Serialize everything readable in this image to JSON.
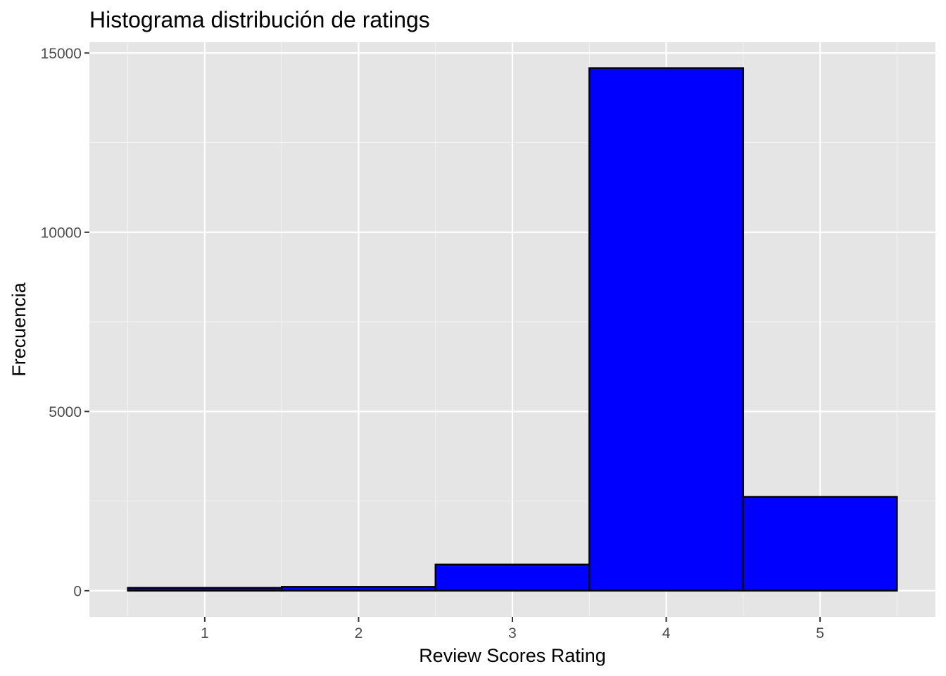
{
  "chart_data": {
    "type": "bar",
    "title": "Histograma distribución de ratings",
    "xlabel": "Review Scores Rating",
    "ylabel": "Frecuencia",
    "x_ticks": [
      "1",
      "2",
      "3",
      "4",
      "5"
    ],
    "y_ticks": [
      "0",
      "5000",
      "10000",
      "15000"
    ],
    "bins": [
      {
        "center": 1,
        "width": 1,
        "value": 80
      },
      {
        "center": 2,
        "width": 1,
        "value": 110
      },
      {
        "center": 3,
        "width": 1,
        "value": 730
      },
      {
        "center": 4,
        "width": 1,
        "value": 14580
      },
      {
        "center": 5,
        "width": 1,
        "value": 2620
      }
    ],
    "xlim": [
      0.25,
      5.75
    ],
    "ylim": [
      -729,
      15300
    ],
    "colors": {
      "bar_fill": "#0000ff",
      "bar_stroke": "#000000",
      "panel_bg": "#e5e5e5",
      "grid_major": "#ffffff",
      "grid_minor": "#f2f2f2"
    },
    "grid": true,
    "legend": "none"
  }
}
